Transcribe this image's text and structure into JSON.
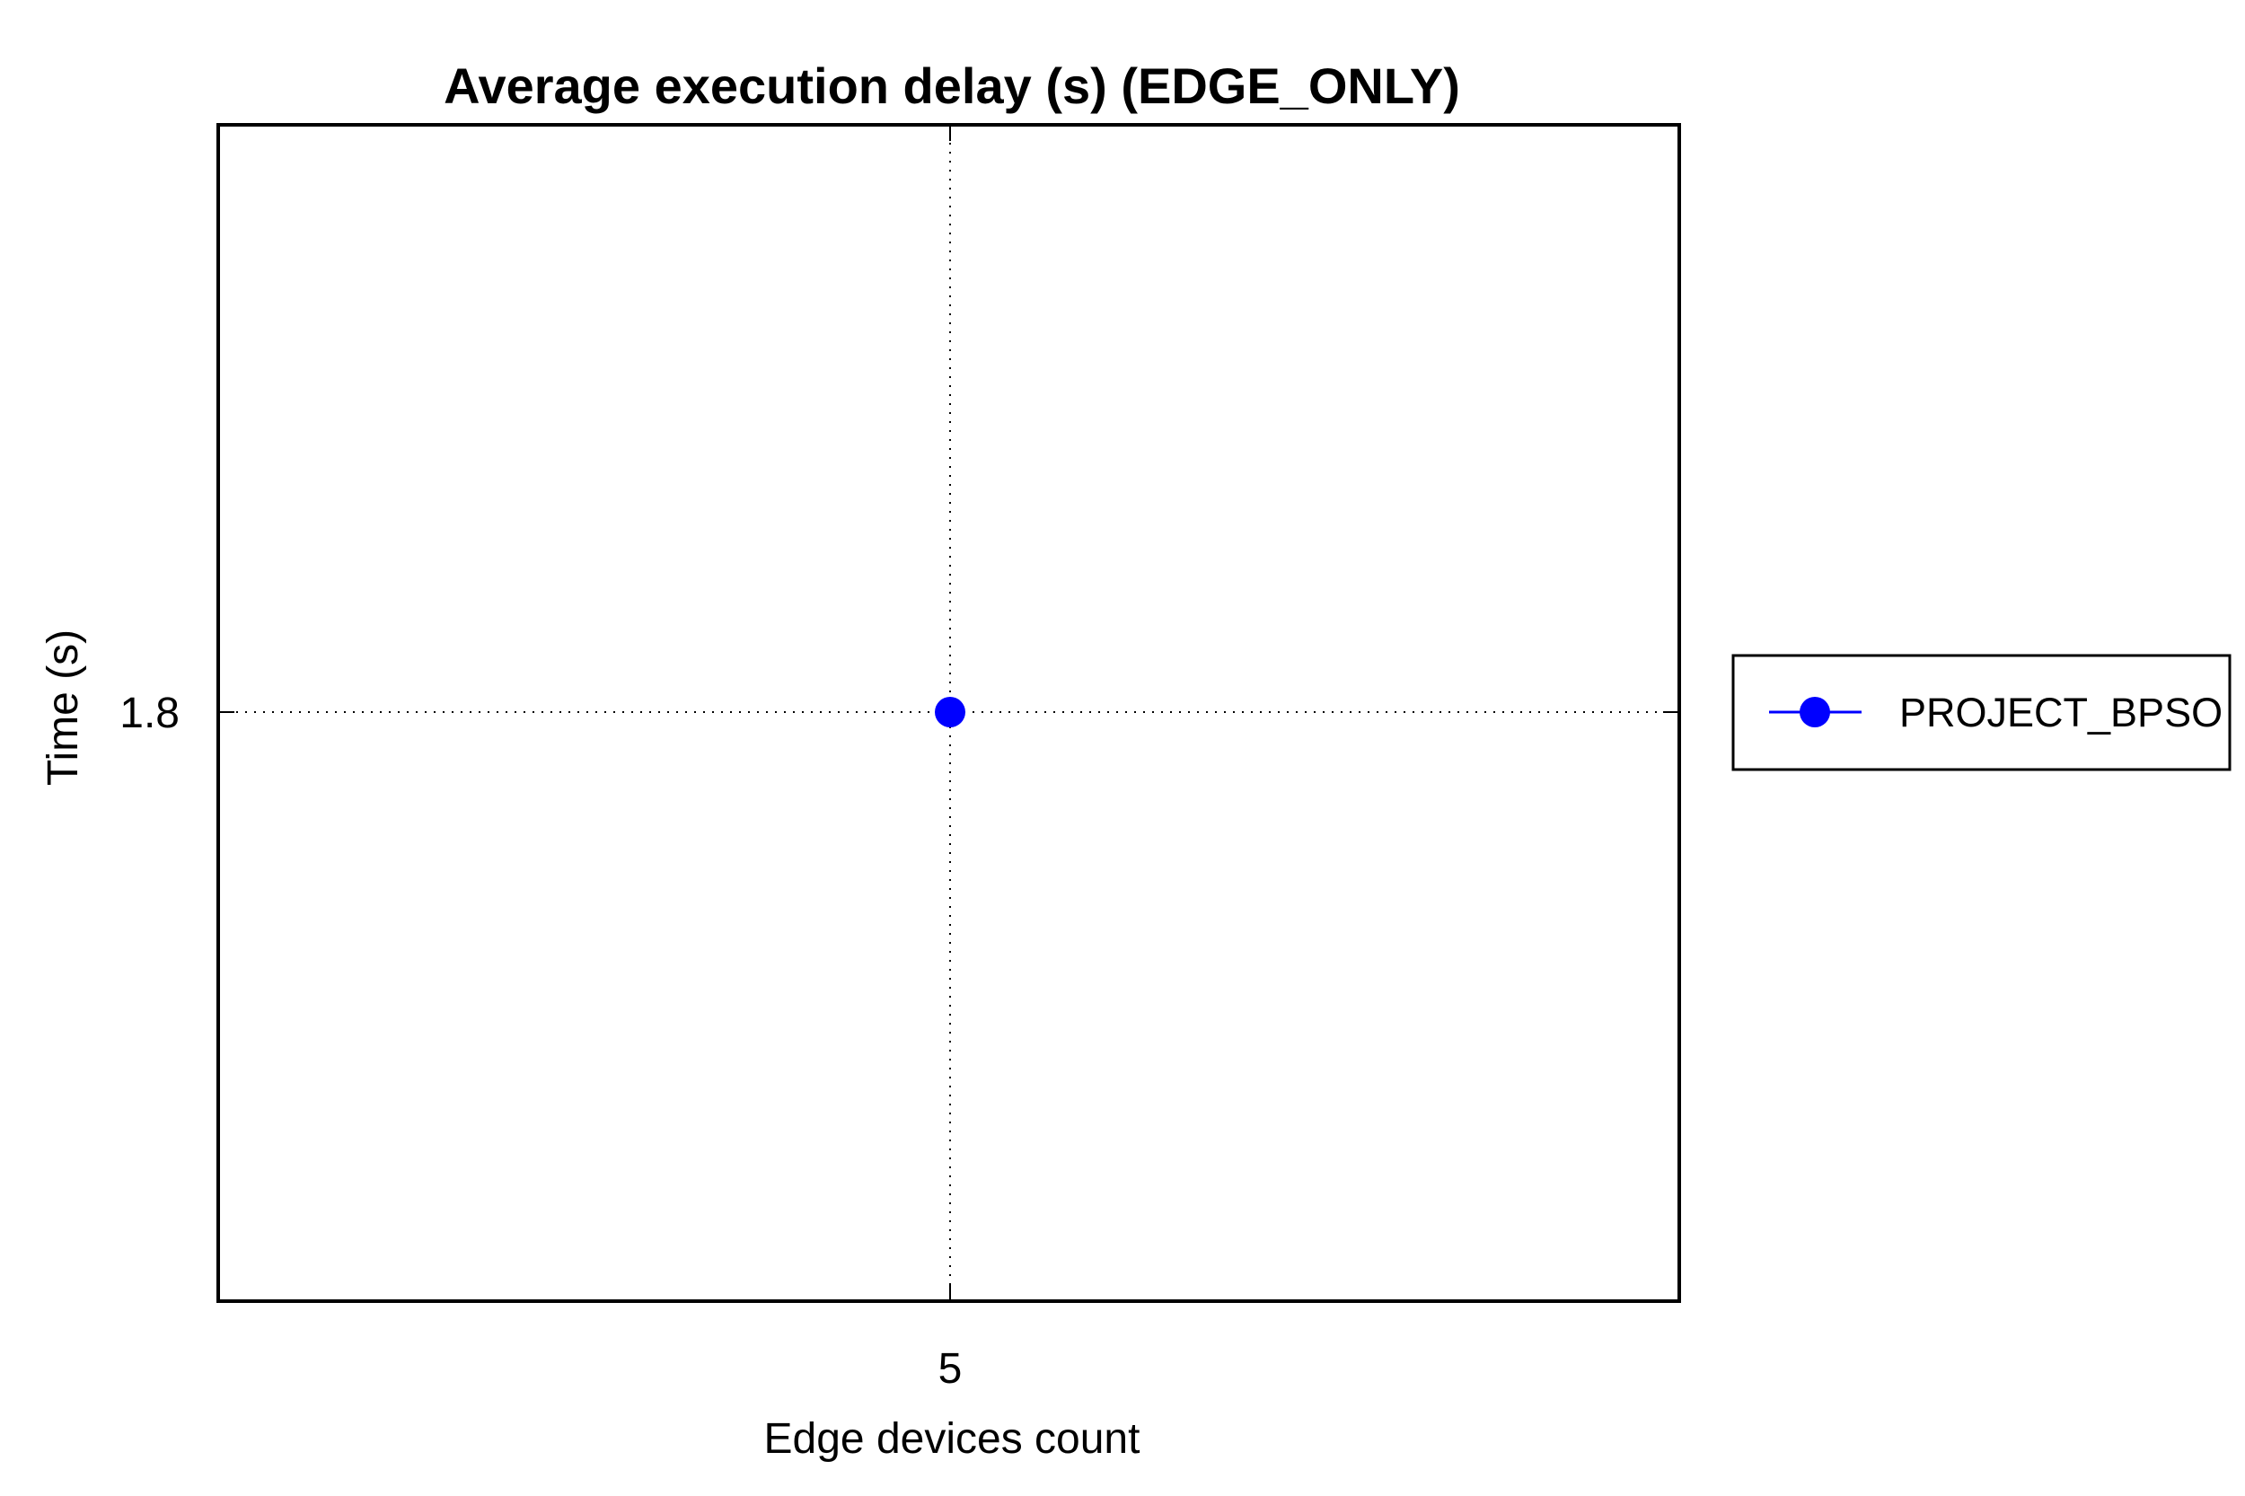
{
  "chart_data": {
    "type": "line",
    "title": "Average execution delay (s) (EDGE_ONLY)",
    "xlabel": "Edge devices count",
    "ylabel": "Time (s)",
    "x": [
      5
    ],
    "x_tick_labels": [
      "5"
    ],
    "y_tick_labels": [
      "1.8"
    ],
    "y_ticks": [
      1.8
    ],
    "grid": true,
    "legend_position": "right",
    "series": [
      {
        "name": "PROJECT_BPSO",
        "x": [
          5
        ],
        "values": [
          1.8
        ],
        "color": "#0000ff",
        "marker": "circle"
      }
    ]
  }
}
